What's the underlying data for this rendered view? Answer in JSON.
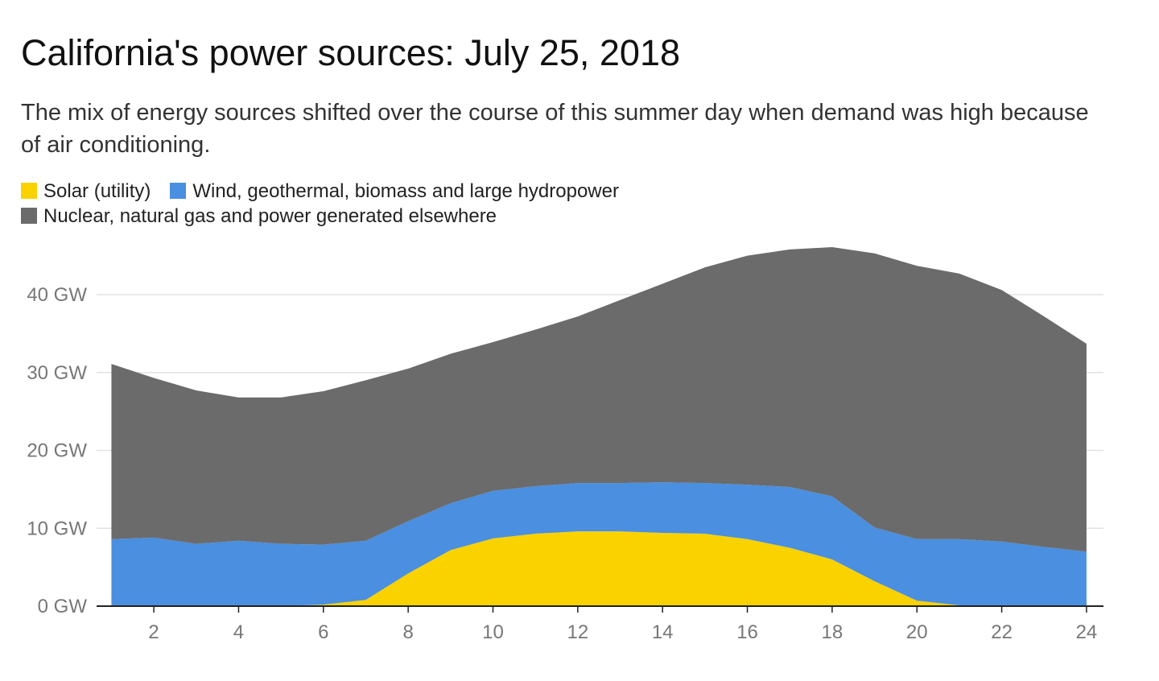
{
  "chart_data": {
    "type": "stacked-area",
    "title": "California's power sources: July 25, 2018",
    "subtitle": "The mix of energy sources shifted over the course of this summer day when demand was high because of air conditioning.",
    "x": [
      1,
      2,
      3,
      4,
      5,
      6,
      7,
      8,
      9,
      10,
      11,
      12,
      13,
      14,
      15,
      16,
      17,
      18,
      19,
      20,
      21,
      22,
      23,
      24
    ],
    "series": [
      {
        "name": "Solar (utility)",
        "color": "#f9d200",
        "values": [
          0,
          0,
          0,
          0,
          0,
          0.2,
          0.8,
          4.2,
          7.2,
          8.7,
          9.3,
          9.6,
          9.6,
          9.4,
          9.3,
          8.6,
          7.5,
          6.0,
          3.2,
          0.7,
          0.1,
          0,
          0,
          0
        ]
      },
      {
        "name": "Wind, geothermal, biomass and large hydropower",
        "color": "#4a8fe0",
        "values": [
          8.6,
          8.8,
          8.0,
          8.4,
          8.0,
          7.7,
          7.6,
          6.7,
          6.0,
          6.1,
          6.1,
          6.2,
          6.2,
          6.5,
          6.5,
          7.0,
          7.8,
          8.1,
          6.9,
          7.9,
          8.5,
          8.3,
          7.6,
          7.0
        ]
      },
      {
        "name": "Nuclear, natural gas and power generated elsewhere",
        "color": "#6b6b6b",
        "values": [
          22.5,
          20.5,
          19.7,
          18.4,
          18.8,
          19.7,
          20.6,
          19.6,
          19.2,
          19.1,
          20.1,
          21.4,
          23.5,
          25.5,
          27.7,
          29.4,
          30.5,
          32.0,
          35.2,
          35.1,
          34.1,
          32.3,
          29.6,
          26.7
        ]
      }
    ],
    "xlim": [
      0.65,
      24.4
    ],
    "xticks": [
      2,
      4,
      6,
      8,
      10,
      12,
      14,
      16,
      18,
      20,
      22,
      24
    ],
    "ylim": [
      0,
      48
    ],
    "yticks": [
      {
        "value": 0,
        "label": "0 GW"
      },
      {
        "value": 10,
        "label": "10 GW"
      },
      {
        "value": 20,
        "label": "20 GW"
      },
      {
        "value": 30,
        "label": "30 GW"
      },
      {
        "value": 40,
        "label": "40 GW"
      }
    ],
    "grid": true
  }
}
